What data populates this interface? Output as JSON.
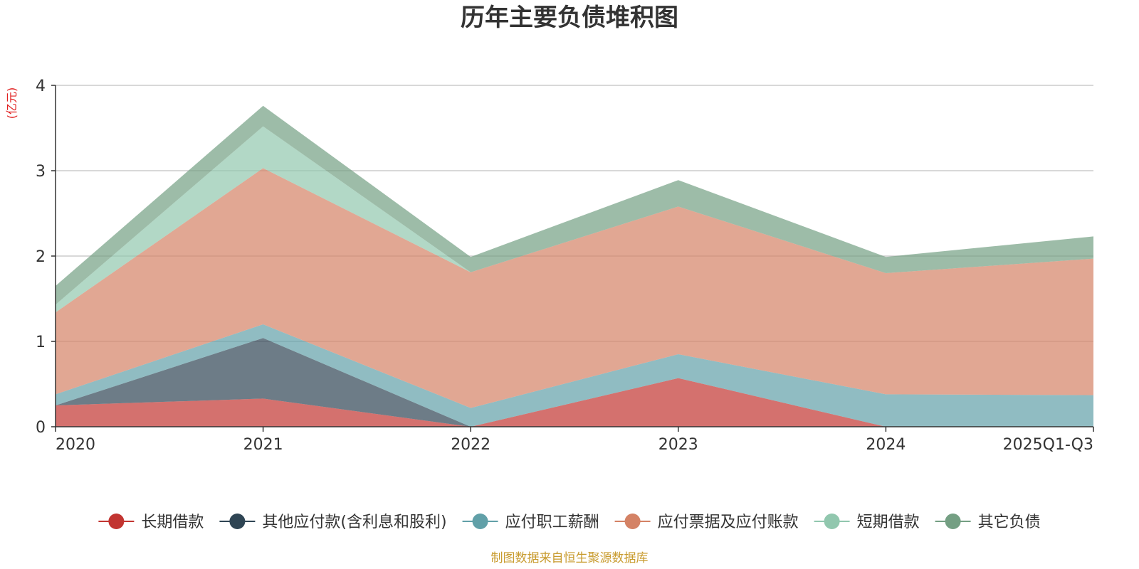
{
  "chart_data": {
    "type": "area",
    "stacked": true,
    "title": "历年主要负债堆积图",
    "unit_label": "(亿元)",
    "categories": [
      "2020",
      "2021",
      "2022",
      "2023",
      "2024",
      "2025Q1-Q3"
    ],
    "ylim": [
      0,
      4
    ],
    "yticks": [
      0,
      1,
      2,
      3,
      4
    ],
    "grid": true,
    "legend_position": "bottom",
    "series": [
      {
        "name": "长期借款",
        "color": "#c23531",
        "values": [
          0.25,
          0.33,
          0.0,
          0.57,
          0.0,
          0.0
        ]
      },
      {
        "name": "其他应付款(含利息和股利)",
        "color": "#2f4554",
        "values": [
          0.0,
          0.71,
          0.0,
          0.0,
          0.0,
          0.0
        ]
      },
      {
        "name": "应付职工薪酬",
        "color": "#61a0a8",
        "values": [
          0.13,
          0.16,
          0.22,
          0.28,
          0.38,
          0.37
        ]
      },
      {
        "name": "应付票据及应付账款",
        "color": "#d48265",
        "values": [
          0.96,
          1.83,
          1.59,
          1.73,
          1.42,
          1.6
        ]
      },
      {
        "name": "短期借款",
        "color": "#91c7ae",
        "values": [
          0.09,
          0.49,
          0.0,
          0.0,
          0.0,
          0.0
        ]
      },
      {
        "name": "其它负债",
        "color": "#749f83",
        "values": [
          0.22,
          0.24,
          0.18,
          0.31,
          0.19,
          0.26
        ]
      }
    ]
  },
  "footer": "制图数据来自恒生聚源数据库"
}
